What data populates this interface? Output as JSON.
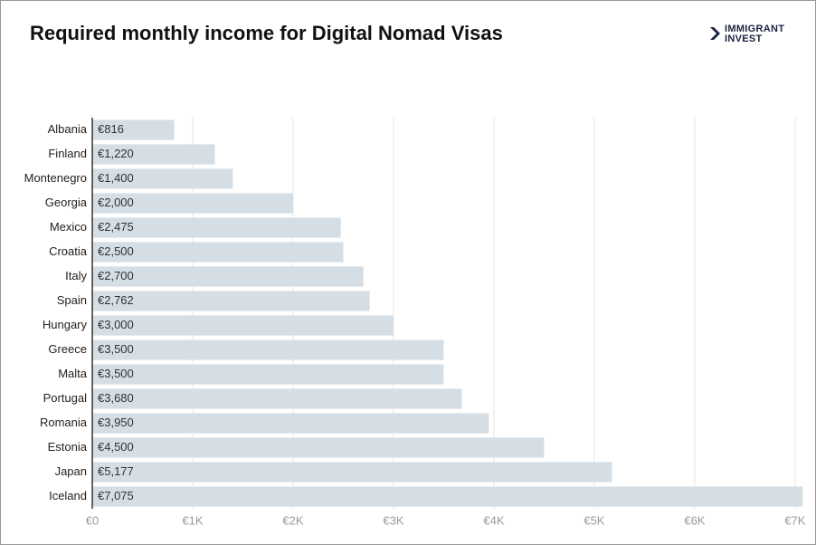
{
  "chart_data": {
    "type": "bar",
    "orientation": "horizontal",
    "title": "Required monthly income for Digital Nomad Visas",
    "categories": [
      "Albania",
      "Finland",
      "Montenegro",
      "Georgia",
      "Mexico",
      "Croatia",
      "Italy",
      "Spain",
      "Hungary",
      "Greece",
      "Malta",
      "Portugal",
      "Romania",
      "Estonia",
      "Japan",
      "Iceland"
    ],
    "values": [
      816,
      1220,
      1400,
      2000,
      2475,
      2500,
      2700,
      2762,
      3000,
      3500,
      3500,
      3680,
      3950,
      4500,
      5177,
      7075
    ],
    "value_labels": [
      "€816",
      "€1,220",
      "€1,400",
      "€2,000",
      "€2,475",
      "€2,500",
      "€2,700",
      "€2,762",
      "€3,000",
      "€3,500",
      "€3,500",
      "€3,680",
      "€3,950",
      "€4,500",
      "€5,177",
      "€7,075"
    ],
    "color": "#d5dee4",
    "xlim": [
      0,
      7100
    ],
    "xticks": [
      {
        "value": 0,
        "label": "€0"
      },
      {
        "value": 1000,
        "label": "€1K"
      },
      {
        "value": 2000,
        "label": "€2K"
      },
      {
        "value": 3000,
        "label": "€3K"
      },
      {
        "value": 4000,
        "label": "€4K"
      },
      {
        "value": 5000,
        "label": "€5K"
      },
      {
        "value": 6000,
        "label": "€6K"
      },
      {
        "value": 7000,
        "label": "€7K"
      }
    ],
    "grid": true
  },
  "logo": {
    "line1": "IMMIGRANT",
    "line2": "INVEST"
  }
}
